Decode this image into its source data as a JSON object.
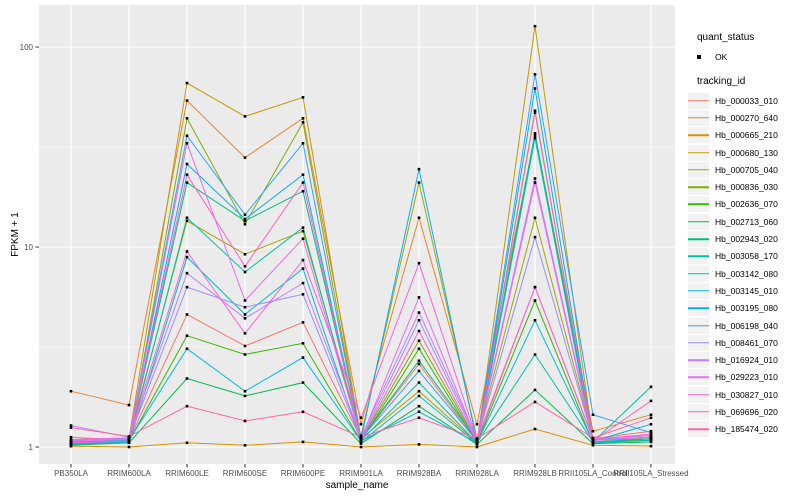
{
  "chart_data": {
    "type": "line",
    "title": "",
    "xlabel": "sample_name",
    "ylabel": "FPKM + 1",
    "y_scale": "log10",
    "y_ticks": [
      1,
      10,
      100
    ],
    "y_minor_ticks": [
      3.1623,
      31.623
    ],
    "ylim": [
      0.9,
      160
    ],
    "grid": "on",
    "categories": [
      "PB350LA",
      "RRIM600LA",
      "RRIM600LE",
      "RRIM600SE",
      "RRIM600PE",
      "RRIM901LA",
      "RRIM928BA",
      "RRIM928LA",
      "RRIM928LB",
      "RRII105LA_Control",
      "RRII105LA_Stressed"
    ],
    "legend": {
      "position": "right",
      "quant_status_title": "quant_status",
      "ok_label": "OK",
      "ok_symbol": "point",
      "tracking_id_title": "tracking_id"
    },
    "panel": {
      "background": "#EBEBEB",
      "gridline_color": "#FFFFFF",
      "point_color": "#000000",
      "tick_text_color": "#4D4D4D",
      "axis_title_color": "#000000"
    },
    "series": [
      {
        "name": "Hb_000033_010",
        "color": "#F8766D",
        "quant_status": "OK",
        "values": [
          1.12,
          1.08,
          4.6,
          3.2,
          4.2,
          1.1,
          2.6,
          1.06,
          6.3,
          1.1,
          1.2
        ]
      },
      {
        "name": "Hb_000270_640",
        "color": "#EA8331",
        "quant_status": "OK",
        "values": [
          1.9,
          1.62,
          54,
          28,
          44,
          1.3,
          14,
          1.3,
          36,
          1.2,
          1.45
        ]
      },
      {
        "name": "Hb_000665_210",
        "color": "#D89000",
        "quant_status": "OK",
        "values": [
          1.01,
          1.0,
          1.05,
          1.02,
          1.06,
          1.0,
          1.03,
          1.0,
          1.23,
          1.02,
          1.01
        ]
      },
      {
        "name": "Hb_000680_130",
        "color": "#C09B00",
        "quant_status": "OK",
        "values": [
          1.05,
          1.1,
          66,
          45,
          56,
          1.1,
          1.9,
          1.05,
          127,
          1.08,
          1.1
        ]
      },
      {
        "name": "Hb_000705_040",
        "color": "#A3A500",
        "quant_status": "OK",
        "values": [
          1.04,
          1.1,
          13.5,
          9.2,
          12,
          1.14,
          21,
          1.1,
          14,
          1.1,
          1.14
        ]
      },
      {
        "name": "Hb_000836_030",
        "color": "#7CAE00",
        "quant_status": "OK",
        "values": [
          1.03,
          1.06,
          44,
          13,
          42,
          1.08,
          3.4,
          1.06,
          48,
          1.06,
          1.08
        ]
      },
      {
        "name": "Hb_002636_070",
        "color": "#39B600",
        "quant_status": "OK",
        "values": [
          1.05,
          1.07,
          3.6,
          2.9,
          3.3,
          1.07,
          3.1,
          1.05,
          5.4,
          1.05,
          1.1
        ]
      },
      {
        "name": "Hb_002713_060",
        "color": "#00BB4E",
        "quant_status": "OK",
        "values": [
          1.02,
          1.05,
          2.2,
          1.8,
          2.1,
          1.04,
          1.6,
          1.03,
          1.93,
          1.04,
          1.06
        ]
      },
      {
        "name": "Hb_002943_020",
        "color": "#00BF7D",
        "quant_status": "OK",
        "values": [
          1.06,
          1.08,
          21,
          13.5,
          19,
          1.1,
          2.7,
          1.08,
          37,
          1.08,
          1.12
        ]
      },
      {
        "name": "Hb_003058_170",
        "color": "#00C1A3",
        "quant_status": "OK",
        "values": [
          1.04,
          1.06,
          14,
          7.5,
          12.5,
          1.08,
          2.1,
          1.05,
          2.9,
          1.06,
          2.0
        ]
      },
      {
        "name": "Hb_003142_080",
        "color": "#00BFC4",
        "quant_status": "OK",
        "values": [
          1.03,
          1.05,
          8.9,
          4.6,
          7.8,
          1.06,
          1.8,
          1.04,
          35,
          1.05,
          1.08
        ]
      },
      {
        "name": "Hb_003145_010",
        "color": "#00BAE0",
        "quant_status": "OK",
        "values": [
          1.05,
          1.08,
          3.1,
          1.9,
          2.8,
          1.07,
          1.5,
          1.05,
          4.3,
          1.06,
          1.1
        ]
      },
      {
        "name": "Hb_003195_080",
        "color": "#00B0F6",
        "quant_status": "OK",
        "values": [
          1.04,
          1.07,
          26,
          13.8,
          23,
          1.09,
          24.5,
          1.06,
          62,
          1.07,
          1.3
        ]
      },
      {
        "name": "Hb_006198_040",
        "color": "#35A2FF",
        "quant_status": "OK",
        "values": [
          1.06,
          1.09,
          36,
          14.5,
          33,
          1.1,
          2.4,
          1.07,
          73,
          1.45,
          1.18
        ]
      },
      {
        "name": "Hb_008461_070",
        "color": "#9590FF",
        "quant_status": "OK",
        "values": [
          1.08,
          1.1,
          6.3,
          5.0,
          5.8,
          1.09,
          4.3,
          1.08,
          11.2,
          1.09,
          1.12
        ]
      },
      {
        "name": "Hb_016924_010",
        "color": "#C77CFF",
        "quant_status": "OK",
        "values": [
          1.28,
          1.12,
          7.4,
          4.4,
          6.6,
          1.12,
          4.7,
          1.1,
          22,
          1.1,
          1.14
        ]
      },
      {
        "name": "Hb_029223_010",
        "color": "#E76BF3",
        "quant_status": "OK",
        "values": [
          1.07,
          1.09,
          33,
          5.4,
          11,
          1.1,
          5.6,
          1.08,
          21,
          1.08,
          1.12
        ]
      },
      {
        "name": "Hb_030827_010",
        "color": "#FA62DB",
        "quant_status": "OK",
        "values": [
          1.09,
          1.11,
          9.5,
          3.7,
          8.6,
          1.4,
          8.3,
          1.09,
          6.3,
          1.09,
          1.16
        ]
      },
      {
        "name": "Hb_069696_020",
        "color": "#FF61C3",
        "quant_status": "OK",
        "values": [
          1.05,
          1.07,
          23,
          8.0,
          21,
          1.08,
          3.8,
          1.06,
          47,
          1.07,
          1.7
        ]
      },
      {
        "name": "Hb_185474_020",
        "color": "#FF67A4",
        "quant_status": "OK",
        "values": [
          1.25,
          1.13,
          1.6,
          1.35,
          1.5,
          1.12,
          1.4,
          1.1,
          1.68,
          1.11,
          1.4
        ]
      }
    ]
  }
}
